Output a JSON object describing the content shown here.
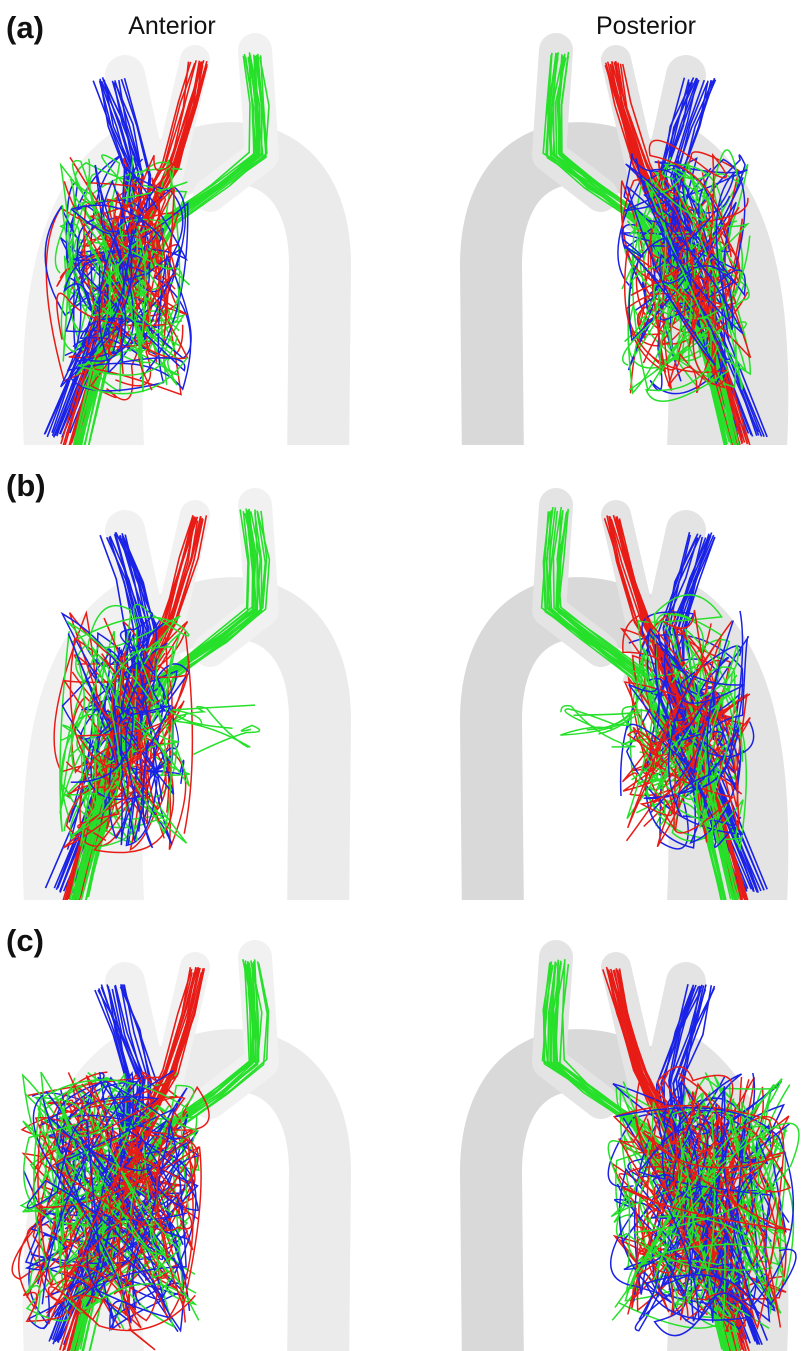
{
  "panels": [
    "(a)",
    "(b)",
    "(c)"
  ],
  "columns": [
    "Anterior",
    "Posterior"
  ]
}
